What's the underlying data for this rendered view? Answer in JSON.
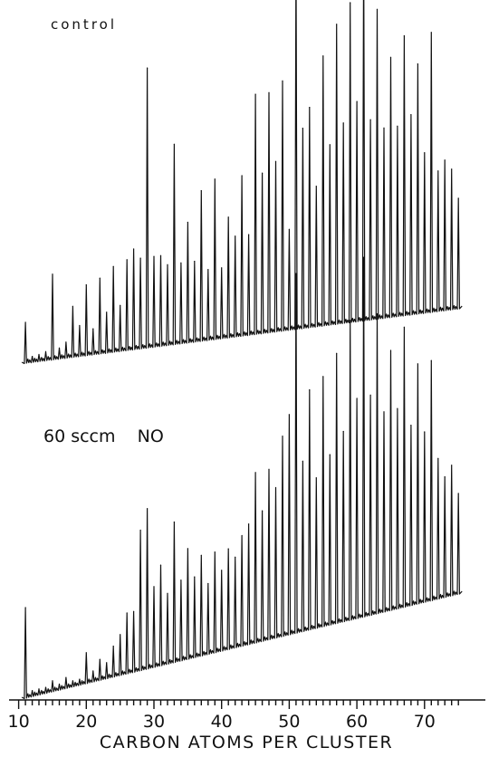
{
  "chart_data": [
    {
      "type": "line",
      "panel": "upper",
      "annotation": "control",
      "x": [
        11,
        12,
        13,
        14,
        15,
        16,
        17,
        18,
        19,
        20,
        21,
        22,
        23,
        24,
        25,
        26,
        27,
        28,
        29,
        30,
        31,
        32,
        33,
        34,
        35,
        36,
        37,
        38,
        39,
        40,
        41,
        42,
        43,
        44,
        45,
        46,
        47,
        48,
        49,
        50,
        51,
        52,
        53,
        54,
        55,
        56,
        57,
        58,
        59,
        60,
        61,
        62,
        63,
        64,
        65,
        66,
        67,
        68,
        69,
        70,
        71,
        72,
        73,
        74,
        75
      ],
      "values": [
        4,
        0.5,
        0.6,
        0.8,
        8.5,
        1,
        1.5,
        5,
        3,
        7,
        2.5,
        7.5,
        4,
        8.5,
        4.5,
        9,
        10,
        9,
        28,
        9,
        9,
        8,
        20,
        8,
        12,
        8,
        15,
        7,
        16,
        7,
        12,
        10,
        16,
        10,
        24,
        16,
        24,
        17,
        25,
        10,
        38,
        20,
        22,
        14,
        27,
        18,
        30,
        20,
        32,
        22,
        38,
        20,
        31,
        19,
        26,
        19,
        28,
        20,
        25,
        16,
        28,
        14,
        15,
        14,
        11
      ],
      "xlim": [
        10,
        76
      ]
    },
    {
      "type": "line",
      "panel": "lower",
      "annotation": "60 sccm    NO",
      "x": [
        11,
        12,
        13,
        14,
        15,
        16,
        17,
        18,
        19,
        20,
        21,
        22,
        23,
        24,
        25,
        26,
        27,
        28,
        29,
        30,
        31,
        32,
        33,
        34,
        35,
        36,
        37,
        38,
        39,
        40,
        41,
        42,
        43,
        44,
        45,
        46,
        47,
        48,
        49,
        50,
        51,
        52,
        53,
        54,
        55,
        56,
        57,
        58,
        59,
        60,
        61,
        62,
        63,
        64,
        65,
        66,
        67,
        68,
        69,
        70,
        71,
        72,
        73,
        74,
        75
      ],
      "values": [
        9,
        0.5,
        0.5,
        0.5,
        1,
        0.5,
        1,
        0.5,
        0.5,
        3,
        1,
        2,
        1.5,
        3,
        4,
        6,
        6,
        14,
        16,
        8,
        10,
        7,
        14,
        8,
        11,
        8,
        10,
        7,
        10,
        8,
        10,
        9,
        11,
        12,
        17,
        13,
        17,
        15,
        20,
        22,
        36,
        17,
        24,
        15,
        25,
        17,
        27,
        19,
        30,
        22,
        36,
        22,
        30,
        20,
        26,
        20,
        28,
        18,
        24,
        17,
        24,
        14,
        12,
        13,
        10
      ],
      "xlim": [
        10,
        76
      ]
    },
    {
      "type": "axis",
      "xlabel": "CARBON ATOMS PER CLUSTER",
      "xticks": [
        "10",
        "20",
        "30",
        "40",
        "50",
        "60",
        "70"
      ]
    }
  ]
}
